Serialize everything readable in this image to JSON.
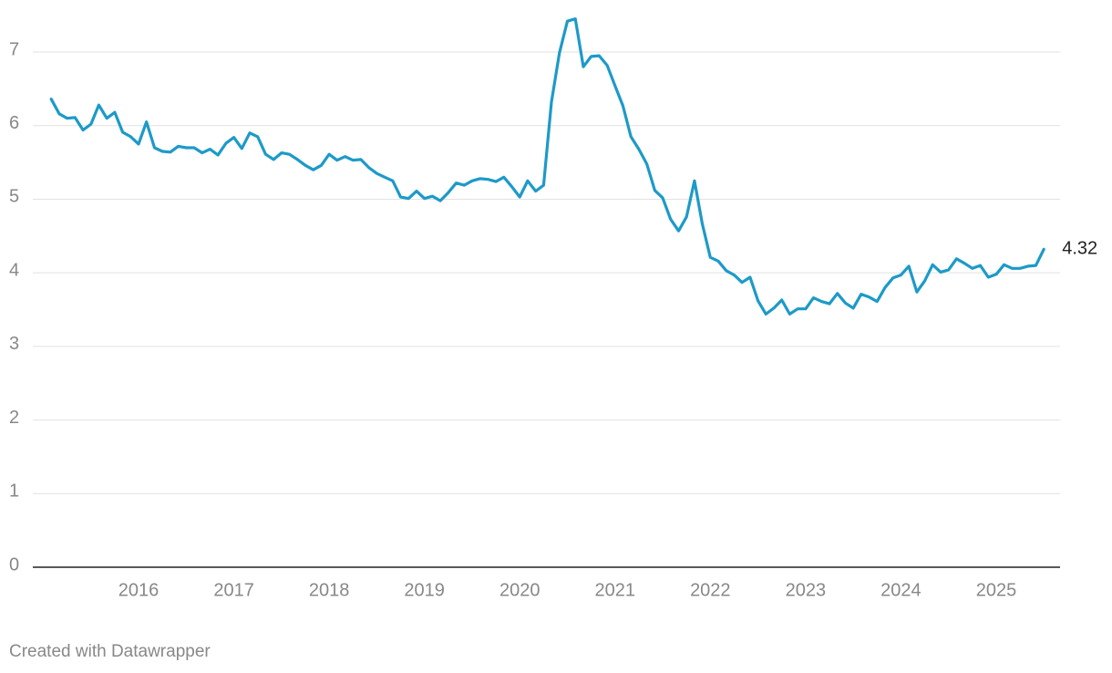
{
  "chart_data": {
    "type": "line",
    "x": [
      2015.083,
      2015.167,
      2015.25,
      2015.333,
      2015.417,
      2015.5,
      2015.583,
      2015.667,
      2015.75,
      2015.833,
      2015.917,
      2016,
      2016.083,
      2016.167,
      2016.25,
      2016.333,
      2016.417,
      2016.5,
      2016.583,
      2016.667,
      2016.75,
      2016.833,
      2016.917,
      2017,
      2017.083,
      2017.167,
      2017.25,
      2017.333,
      2017.417,
      2017.5,
      2017.583,
      2017.667,
      2017.75,
      2017.833,
      2017.917,
      2018,
      2018.083,
      2018.167,
      2018.25,
      2018.333,
      2018.417,
      2018.5,
      2018.583,
      2018.667,
      2018.75,
      2018.833,
      2018.917,
      2019,
      2019.083,
      2019.167,
      2019.25,
      2019.333,
      2019.417,
      2019.5,
      2019.583,
      2019.667,
      2019.75,
      2019.833,
      2019.917,
      2020,
      2020.083,
      2020.167,
      2020.25,
      2020.333,
      2020.417,
      2020.5,
      2020.583,
      2020.667,
      2020.75,
      2020.833,
      2020.917,
      2021,
      2021.083,
      2021.167,
      2021.25,
      2021.333,
      2021.417,
      2021.5,
      2021.583,
      2021.667,
      2021.75,
      2021.833,
      2021.917,
      2022,
      2022.083,
      2022.167,
      2022.25,
      2022.333,
      2022.417,
      2022.5,
      2022.583,
      2022.667,
      2022.75,
      2022.833,
      2022.917,
      2023,
      2023.083,
      2023.167,
      2023.25,
      2023.333,
      2023.417,
      2023.5,
      2023.583,
      2023.667,
      2023.75,
      2023.833,
      2023.917,
      2024,
      2024.083,
      2024.167,
      2024.25,
      2024.333,
      2024.417,
      2024.5,
      2024.583,
      2024.667,
      2024.75,
      2024.833,
      2024.917,
      2025,
      2025.083,
      2025.167,
      2025.25,
      2025.333,
      2025.417,
      2025.5
    ],
    "values": [
      6.36,
      6.16,
      6.1,
      6.11,
      5.94,
      6.02,
      6.28,
      6.1,
      6.18,
      5.91,
      5.85,
      5.75,
      6.05,
      5.7,
      5.65,
      5.64,
      5.72,
      5.7,
      5.7,
      5.63,
      5.68,
      5.6,
      5.76,
      5.84,
      5.69,
      5.9,
      5.85,
      5.61,
      5.54,
      5.63,
      5.61,
      5.54,
      5.46,
      5.4,
      5.46,
      5.61,
      5.53,
      5.58,
      5.53,
      5.54,
      5.43,
      5.35,
      5.3,
      5.25,
      5.03,
      5.01,
      5.11,
      5.01,
      5.04,
      4.98,
      5.09,
      5.22,
      5.19,
      5.25,
      5.28,
      5.27,
      5.24,
      5.3,
      5.17,
      5.03,
      5.25,
      5.11,
      5.19,
      6.32,
      6.99,
      7.42,
      7.45,
      6.8,
      6.94,
      6.95,
      6.82,
      6.54,
      6.27,
      5.85,
      5.68,
      5.48,
      5.12,
      5.02,
      4.73,
      4.57,
      4.76,
      5.25,
      4.66,
      4.21,
      4.16,
      4.03,
      3.97,
      3.87,
      3.94,
      3.62,
      3.44,
      3.52,
      3.63,
      3.44,
      3.51,
      3.51,
      3.66,
      3.61,
      3.58,
      3.72,
      3.59,
      3.52,
      3.71,
      3.67,
      3.61,
      3.8,
      3.93,
      3.97,
      4.09,
      3.74,
      3.89,
      4.11,
      4.01,
      4.04,
      4.19,
      4.13,
      4.06,
      4.1,
      3.94,
      3.98,
      4.11,
      4.06,
      4.06,
      4.09,
      4.1,
      4.32
    ],
    "color": "#1d9ac8",
    "xlim": [
      2014.89,
      2025.67
    ],
    "xticks": [
      2016,
      2017,
      2018,
      2019,
      2020,
      2021,
      2022,
      2023,
      2024,
      2025
    ],
    "ylim": [
      0,
      7.5
    ],
    "yticks": [
      0,
      1,
      2,
      3,
      4,
      5,
      6,
      7
    ],
    "grid": true,
    "source": "Created with Datawrapper"
  }
}
